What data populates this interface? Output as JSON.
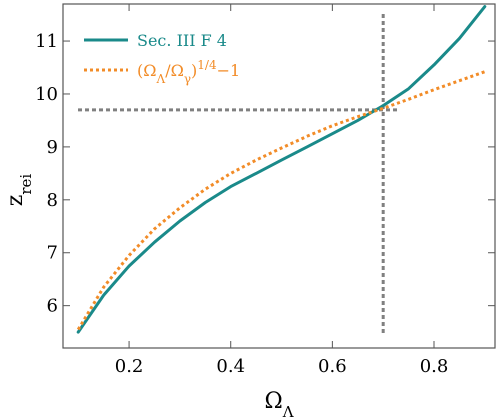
{
  "chart_data": {
    "type": "line",
    "xlabel": "Ω_Λ",
    "ylabel": "z_rei",
    "xlim": [
      0.07,
      0.92
    ],
    "ylim": [
      5.2,
      11.7
    ],
    "xticks": [
      0.2,
      0.4,
      0.6,
      0.8
    ],
    "xtick_labels": [
      "0.2",
      "0.4",
      "0.6",
      "0.8"
    ],
    "yticks": [
      6,
      7,
      8,
      9,
      10,
      11
    ],
    "ytick_labels": [
      "6",
      "7",
      "8",
      "9",
      "10",
      "11"
    ],
    "grid": false,
    "legend_position": "top-left",
    "series": [
      {
        "name": "Sec. III F 4",
        "color": "#1a8a8a",
        "style": "solid",
        "x": [
          0.1,
          0.15,
          0.2,
          0.25,
          0.3,
          0.35,
          0.4,
          0.45,
          0.5,
          0.55,
          0.6,
          0.65,
          0.7,
          0.75,
          0.8,
          0.85,
          0.9
        ],
        "y": [
          5.5,
          6.2,
          6.75,
          7.2,
          7.6,
          7.95,
          8.25,
          8.5,
          8.75,
          9.0,
          9.25,
          9.5,
          9.78,
          10.1,
          10.55,
          11.05,
          11.65
        ]
      },
      {
        "name": "(Ω_Λ/Ω_γ)^{1/4}−1",
        "color": "#f28c28",
        "style": "dotted",
        "x": [
          0.1,
          0.15,
          0.2,
          0.25,
          0.3,
          0.35,
          0.4,
          0.45,
          0.5,
          0.55,
          0.6,
          0.65,
          0.7,
          0.75,
          0.8,
          0.85,
          0.9
        ],
        "y": [
          5.55,
          6.35,
          6.95,
          7.45,
          7.85,
          8.2,
          8.5,
          8.75,
          8.98,
          9.2,
          9.4,
          9.57,
          9.73,
          9.9,
          10.08,
          10.25,
          10.42
        ]
      }
    ],
    "reference_lines": [
      {
        "orientation": "vertical",
        "value": 0.7,
        "color": "#808080",
        "style": "dotted"
      },
      {
        "orientation": "horizontal",
        "value": 9.7,
        "color": "#808080",
        "style": "dotted"
      }
    ]
  }
}
